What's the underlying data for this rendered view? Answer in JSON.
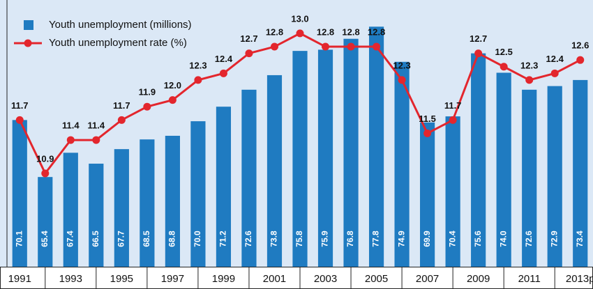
{
  "chart_data": {
    "type": "bar",
    "categories": [
      "1991",
      null,
      "1993",
      null,
      "1995",
      null,
      "1997",
      null,
      "1999",
      null,
      "2001",
      null,
      "2003",
      null,
      "2005",
      null,
      "2007",
      null,
      "2009",
      null,
      "2011",
      null,
      "2013p"
    ],
    "series": [
      {
        "name": "Youth unemployment (millions)",
        "type": "bar",
        "color": "#1f7bc1",
        "values": [
          70.1,
          65.4,
          67.4,
          66.5,
          67.7,
          68.5,
          68.8,
          70.0,
          71.2,
          72.6,
          73.8,
          75.8,
          75.9,
          76.8,
          77.8,
          74.9,
          69.9,
          70.4,
          75.6,
          74.0,
          72.6,
          72.9,
          73.4
        ],
        "value_labels": [
          "70.1",
          "65.4",
          "67.4",
          "66.5",
          "67.7",
          "68.5",
          "68.8",
          "70.0",
          "71.2",
          "72.6",
          "73.8",
          "75.8",
          "75.9",
          "76.8",
          "77.8",
          "74.9",
          "69.9",
          "70.4",
          "75.6",
          "74.0",
          "72.6",
          "72.9",
          "73.4"
        ]
      },
      {
        "name": "Youth unemployment rate (%)",
        "type": "line",
        "axis": "y2",
        "color": "#e3262d",
        "values": [
          11.7,
          10.9,
          11.4,
          11.4,
          11.7,
          11.9,
          12.0,
          12.3,
          12.4,
          12.7,
          12.8,
          13.0,
          12.8,
          12.8,
          12.8,
          12.3,
          11.5,
          11.7,
          12.7,
          12.5,
          12.3,
          12.4,
          12.6
        ],
        "value_labels": [
          "11.7",
          "10.9",
          "11.4",
          "11.4",
          "11.7",
          "11.9",
          "12.0",
          "12.3",
          "12.4",
          "12.7",
          "12.8",
          "13.0",
          "12.8",
          "12.8",
          "12.8",
          "12.3",
          "11.5",
          "11.7",
          "12.7",
          "12.5",
          "12.3",
          "12.4",
          "12.6"
        ]
      }
    ],
    "ylim": [
      58,
      80
    ],
    "y2lim": [
      9.5,
      13.5
    ],
    "legend": "top-left"
  }
}
